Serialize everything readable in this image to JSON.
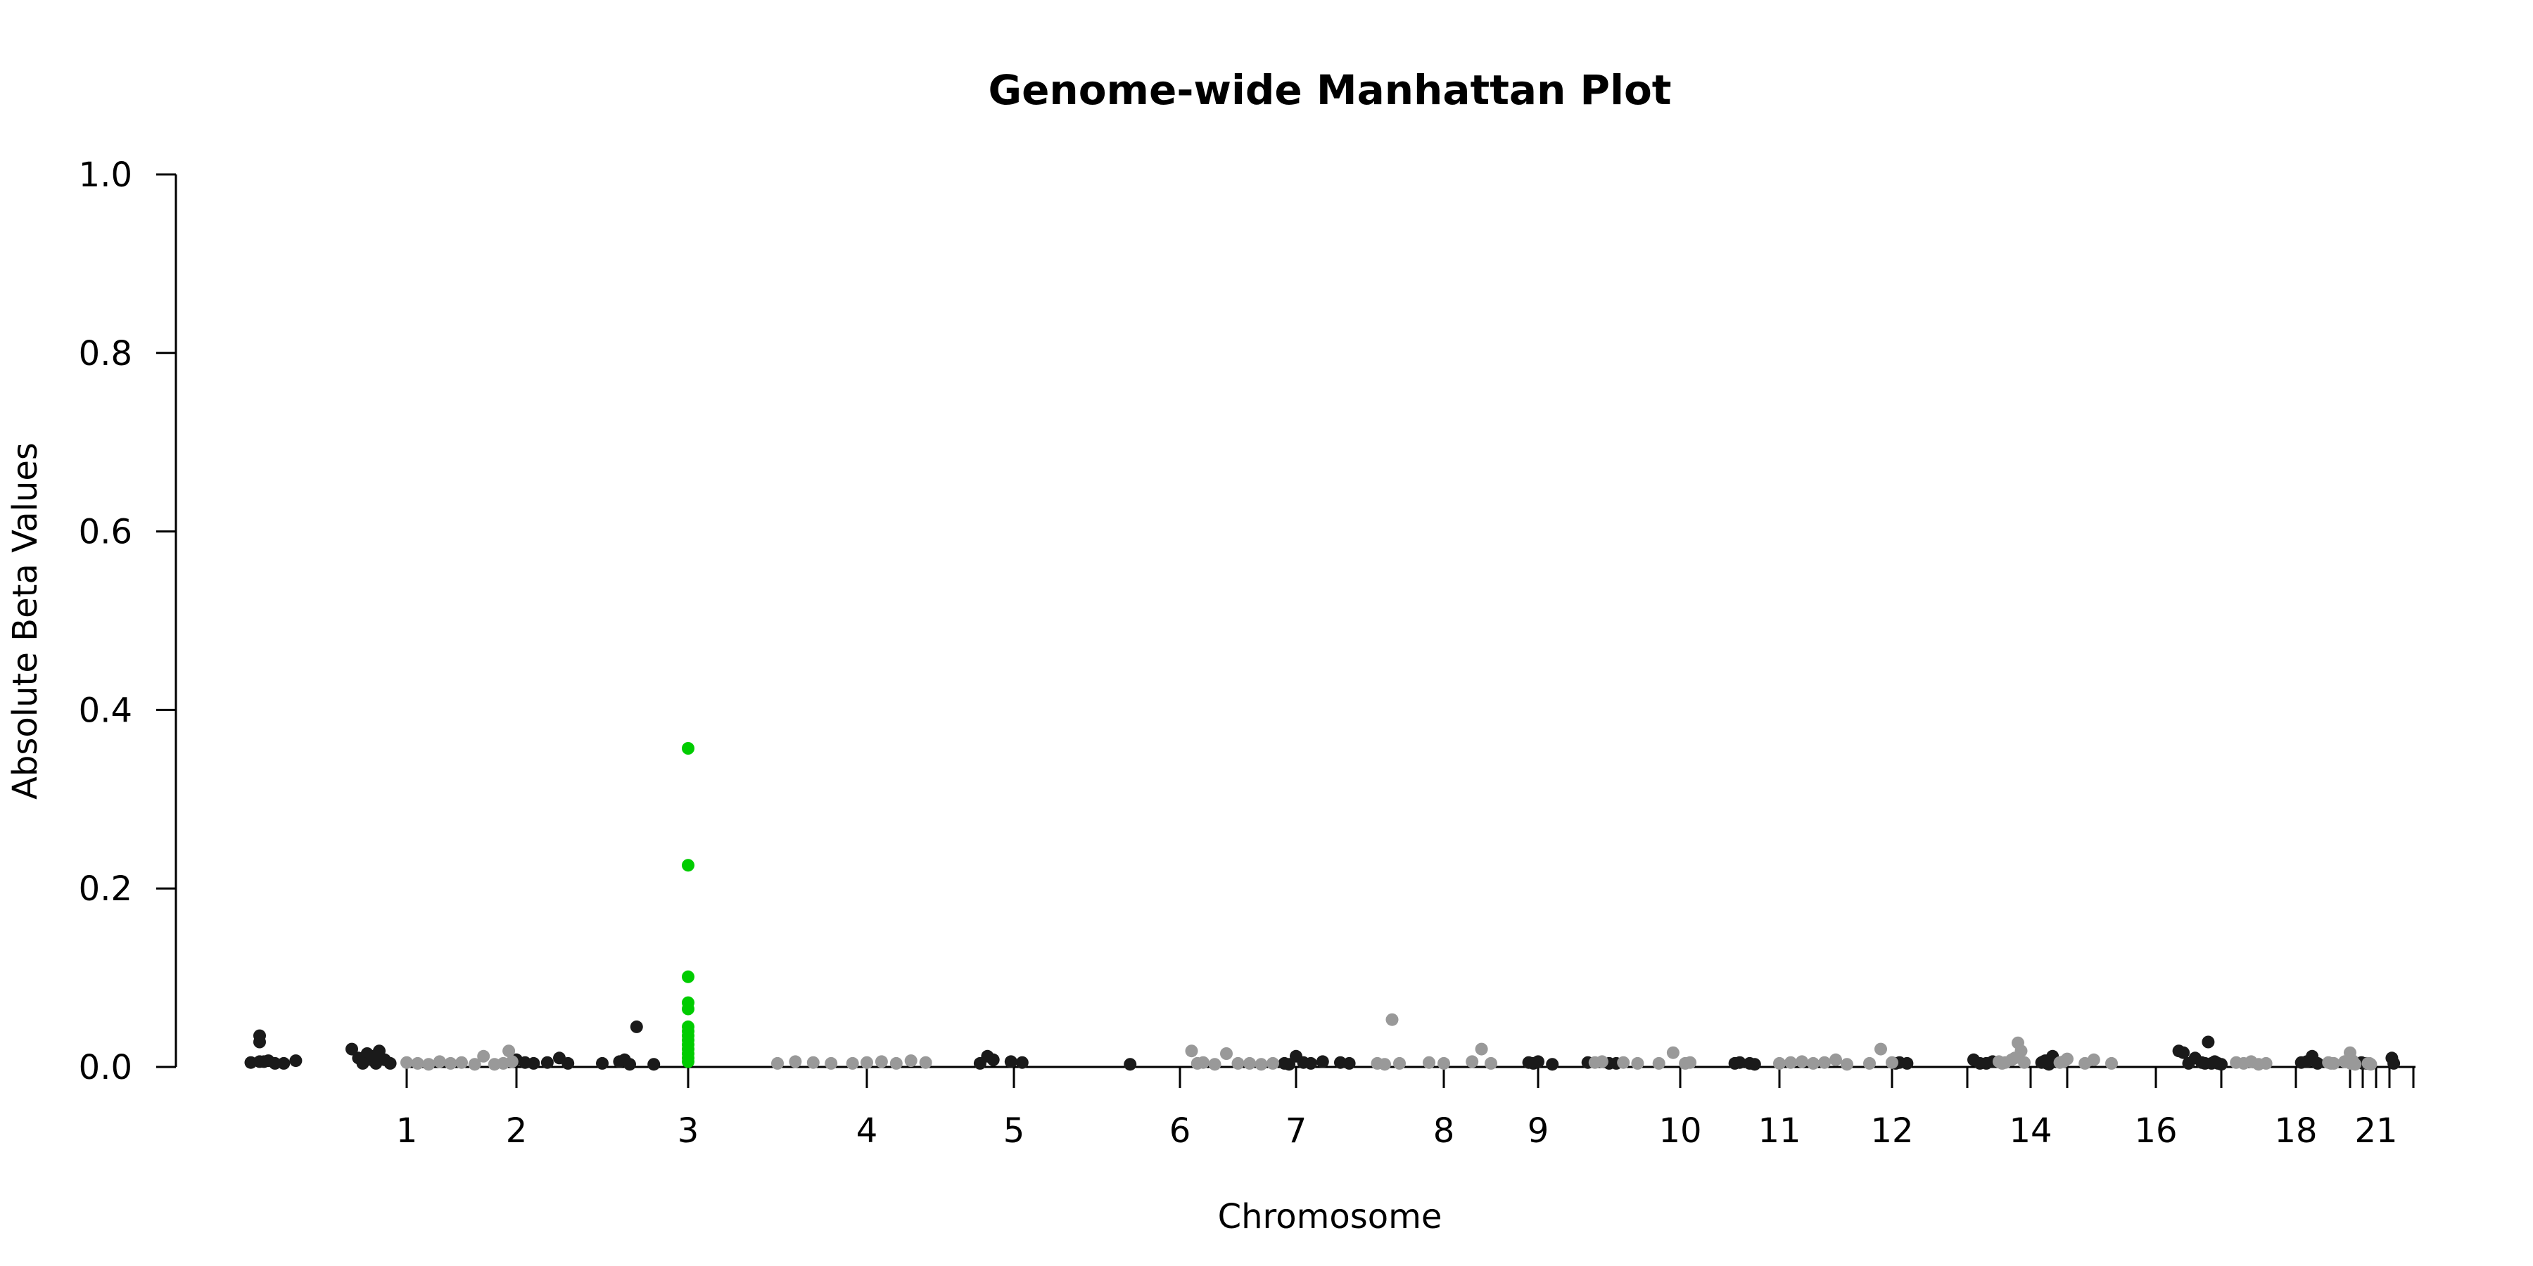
{
  "chart_data": {
    "type": "scatter",
    "title": "Genome-wide Manhattan Plot",
    "xlabel": "Chromosome",
    "ylabel": "Absolute Beta Values",
    "ylim": [
      0,
      1.0
    ],
    "y_ticks": [
      "0.0",
      "0.2",
      "0.4",
      "0.6",
      "0.8",
      "1.0"
    ],
    "grid": false,
    "legend": "none",
    "x_ticks": [
      {
        "label": "1",
        "pos": 1
      },
      {
        "label": "2",
        "pos": 2
      },
      {
        "label": "3",
        "pos": 3
      },
      {
        "label": "4",
        "pos": 4
      },
      {
        "label": "5",
        "pos": 5
      },
      {
        "label": "6",
        "pos": 6
      },
      {
        "label": "7",
        "pos": 7
      },
      {
        "label": "8",
        "pos": 8
      },
      {
        "label": "9",
        "pos": 9
      },
      {
        "label": "10",
        "pos": 10
      },
      {
        "label": "11",
        "pos": 11
      },
      {
        "label": "12",
        "pos": 12
      },
      {
        "label": "",
        "pos": 13
      },
      {
        "label": "14",
        "pos": 14
      },
      {
        "label": "",
        "pos": 15
      },
      {
        "label": "16",
        "pos": 16
      },
      {
        "label": "",
        "pos": 17
      },
      {
        "label": "18",
        "pos": 18
      },
      {
        "label": "",
        "pos": 19
      },
      {
        "label": "",
        "pos": 20
      },
      {
        "label": "21",
        "pos": 21
      },
      {
        "label": "",
        "pos": 22
      },
      {
        "label": "",
        "pos": 23
      }
    ],
    "colors": {
      "dark": "#1a1a1a",
      "light": "#999999",
      "highlight": "#00cc00"
    },
    "series": [
      {
        "color": "dark",
        "points": [
          [
            -0.42,
            0.005
          ],
          [
            -0.34,
            0.035
          ],
          [
            -0.34,
            0.028
          ],
          [
            -0.34,
            0.006
          ],
          [
            -0.3,
            0.006
          ],
          [
            -0.26,
            0.007
          ],
          [
            -0.2,
            0.004
          ],
          [
            -0.12,
            0.004
          ],
          [
            -0.01,
            0.007
          ],
          [
            0.5,
            0.02
          ],
          [
            0.56,
            0.01
          ],
          [
            0.64,
            0.015
          ],
          [
            0.68,
            0.008
          ],
          [
            0.72,
            0.004
          ],
          [
            0.75,
            0.018
          ],
          [
            0.8,
            0.008
          ],
          [
            0.6,
            0.004
          ],
          [
            0.7,
            0.012
          ],
          [
            0.85,
            0.004
          ],
          [
            2.0,
            0.008
          ],
          [
            2.05,
            0.005
          ],
          [
            2.1,
            0.004
          ],
          [
            2.18,
            0.005
          ],
          [
            2.25,
            0.01
          ],
          [
            2.3,
            0.004
          ],
          [
            2.5,
            0.004
          ],
          [
            2.6,
            0.006
          ],
          [
            2.63,
            0.008
          ],
          [
            2.66,
            0.003
          ],
          [
            2.7,
            0.045
          ],
          [
            2.8,
            0.003
          ],
          [
            4.77,
            0.004
          ],
          [
            4.82,
            0.012
          ],
          [
            4.86,
            0.008
          ],
          [
            4.98,
            0.006
          ],
          [
            5.05,
            0.005
          ],
          [
            5.7,
            0.003
          ],
          [
            6.9,
            0.004
          ],
          [
            6.94,
            0.003
          ],
          [
            7.0,
            0.012
          ],
          [
            7.05,
            0.005
          ],
          [
            7.1,
            0.004
          ],
          [
            7.18,
            0.006
          ],
          [
            7.3,
            0.005
          ],
          [
            7.36,
            0.004
          ],
          [
            8.9,
            0.005
          ],
          [
            8.95,
            0.004
          ],
          [
            9.0,
            0.006
          ],
          [
            9.1,
            0.003
          ],
          [
            9.35,
            0.005
          ],
          [
            9.5,
            0.004
          ],
          [
            9.55,
            0.004
          ],
          [
            10.55,
            0.004
          ],
          [
            10.6,
            0.005
          ],
          [
            10.7,
            0.004
          ],
          [
            10.75,
            0.003
          ],
          [
            12.05,
            0.004
          ],
          [
            12.1,
            0.005
          ],
          [
            12.2,
            0.004
          ],
          [
            13.1,
            0.008
          ],
          [
            13.2,
            0.004
          ],
          [
            13.3,
            0.004
          ],
          [
            13.4,
            0.006
          ],
          [
            14.3,
            0.005
          ],
          [
            14.35,
            0.006
          ],
          [
            14.4,
            0.007
          ],
          [
            14.45,
            0.004
          ],
          [
            14.6,
            0.012
          ],
          [
            14.5,
            0.003
          ],
          [
            16.35,
            0.018
          ],
          [
            16.42,
            0.016
          ],
          [
            16.5,
            0.004
          ],
          [
            16.6,
            0.01
          ],
          [
            16.7,
            0.005
          ],
          [
            16.75,
            0.004
          ],
          [
            16.8,
            0.028
          ],
          [
            16.85,
            0.004
          ],
          [
            16.9,
            0.006
          ],
          [
            16.95,
            0.004
          ],
          [
            17.0,
            0.003
          ],
          [
            18.1,
            0.005
          ],
          [
            18.2,
            0.006
          ],
          [
            18.3,
            0.012
          ],
          [
            18.4,
            0.004
          ],
          [
            19.9,
            0.005
          ],
          [
            20.0,
            0.004
          ],
          [
            20.3,
            0.004
          ],
          [
            22.1,
            0.01
          ],
          [
            22.18,
            0.004
          ]
        ]
      },
      {
        "color": "light",
        "points": [
          [
            1.0,
            0.005
          ],
          [
            1.1,
            0.004
          ],
          [
            1.2,
            0.003
          ],
          [
            1.3,
            0.006
          ],
          [
            1.4,
            0.004
          ],
          [
            1.5,
            0.005
          ],
          [
            1.62,
            0.003
          ],
          [
            1.7,
            0.012
          ],
          [
            1.8,
            0.003
          ],
          [
            1.88,
            0.004
          ],
          [
            1.93,
            0.018
          ],
          [
            1.96,
            0.006
          ],
          [
            3.5,
            0.004
          ],
          [
            3.6,
            0.006
          ],
          [
            3.7,
            0.005
          ],
          [
            3.8,
            0.004
          ],
          [
            3.92,
            0.004
          ],
          [
            4.0,
            0.005
          ],
          [
            4.1,
            0.006
          ],
          [
            4.2,
            0.004
          ],
          [
            4.3,
            0.007
          ],
          [
            4.4,
            0.005
          ],
          [
            6.1,
            0.018
          ],
          [
            6.15,
            0.004
          ],
          [
            6.2,
            0.005
          ],
          [
            6.3,
            0.003
          ],
          [
            6.4,
            0.015
          ],
          [
            6.5,
            0.004
          ],
          [
            6.6,
            0.004
          ],
          [
            6.7,
            0.003
          ],
          [
            6.8,
            0.004
          ],
          [
            7.55,
            0.004
          ],
          [
            7.6,
            0.003
          ],
          [
            7.65,
            0.053
          ],
          [
            7.7,
            0.004
          ],
          [
            7.9,
            0.005
          ],
          [
            8.0,
            0.004
          ],
          [
            8.3,
            0.006
          ],
          [
            8.4,
            0.02
          ],
          [
            8.5,
            0.004
          ],
          [
            9.4,
            0.005
          ],
          [
            9.45,
            0.006
          ],
          [
            9.6,
            0.005
          ],
          [
            9.7,
            0.004
          ],
          [
            9.85,
            0.004
          ],
          [
            9.95,
            0.016
          ],
          [
            10.05,
            0.004
          ],
          [
            10.1,
            0.005
          ],
          [
            11.0,
            0.004
          ],
          [
            11.1,
            0.005
          ],
          [
            11.2,
            0.006
          ],
          [
            11.3,
            0.004
          ],
          [
            11.4,
            0.005
          ],
          [
            11.5,
            0.008
          ],
          [
            11.6,
            0.003
          ],
          [
            11.8,
            0.004
          ],
          [
            11.9,
            0.02
          ],
          [
            12.0,
            0.005
          ],
          [
            13.5,
            0.006
          ],
          [
            13.55,
            0.004
          ],
          [
            13.6,
            0.005
          ],
          [
            13.7,
            0.008
          ],
          [
            13.75,
            0.01
          ],
          [
            13.8,
            0.027
          ],
          [
            13.85,
            0.018
          ],
          [
            13.9,
            0.005
          ],
          [
            14.8,
            0.005
          ],
          [
            14.9,
            0.006
          ],
          [
            15.0,
            0.009
          ],
          [
            15.2,
            0.004
          ],
          [
            15.3,
            0.008
          ],
          [
            15.5,
            0.004
          ],
          [
            17.2,
            0.005
          ],
          [
            17.3,
            0.004
          ],
          [
            17.4,
            0.006
          ],
          [
            17.5,
            0.003
          ],
          [
            17.6,
            0.004
          ],
          [
            18.6,
            0.005
          ],
          [
            18.65,
            0.004
          ],
          [
            18.7,
            0.004
          ],
          [
            18.9,
            0.006
          ],
          [
            19.0,
            0.016
          ],
          [
            19.05,
            0.004
          ],
          [
            19.2,
            0.007
          ],
          [
            19.3,
            0.004
          ],
          [
            19.4,
            0.003
          ],
          [
            20.4,
            0.004
          ],
          [
            20.5,
            0.004
          ],
          [
            20.6,
            0.003
          ]
        ]
      },
      {
        "color": "highlight",
        "points": [
          [
            3.0,
            0.357
          ],
          [
            3.0,
            0.226
          ],
          [
            3.0,
            0.101
          ],
          [
            3.0,
            0.072
          ],
          [
            3.0,
            0.065
          ],
          [
            3.0,
            0.045
          ],
          [
            3.0,
            0.04
          ],
          [
            3.0,
            0.035
          ],
          [
            3.0,
            0.03
          ],
          [
            3.0,
            0.025
          ],
          [
            3.0,
            0.02
          ],
          [
            3.0,
            0.015
          ],
          [
            3.0,
            0.01
          ],
          [
            3.0,
            0.006
          ]
        ]
      }
    ]
  }
}
